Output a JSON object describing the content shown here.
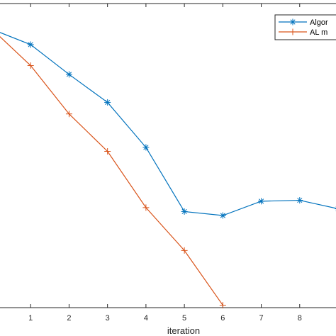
{
  "chart_data": {
    "type": "line",
    "xlabel": "iteration",
    "ylabel": "",
    "title": "",
    "x_ticks": [
      1,
      2,
      3,
      4,
      5,
      6,
      7,
      8
    ],
    "xlim": [
      0,
      9
    ],
    "ylim": [
      0,
      1
    ],
    "grid": false,
    "legend_position": "top-right",
    "series": [
      {
        "name": "Algor",
        "color": "#0072BD",
        "marker": "asterisk",
        "x": [
          0,
          1,
          2,
          3,
          4,
          5,
          6,
          7,
          8,
          9
        ],
        "y": [
          0.915,
          0.865,
          0.767,
          0.675,
          0.527,
          0.316,
          0.303,
          0.35,
          0.353,
          0.325
        ]
      },
      {
        "name": "AL m",
        "color": "#D95319",
        "marker": "plus",
        "x": [
          0,
          1,
          2,
          3,
          4,
          5,
          6
        ],
        "y": [
          0.915,
          0.796,
          0.637,
          0.514,
          0.329,
          0.188,
          0.008
        ]
      }
    ]
  }
}
